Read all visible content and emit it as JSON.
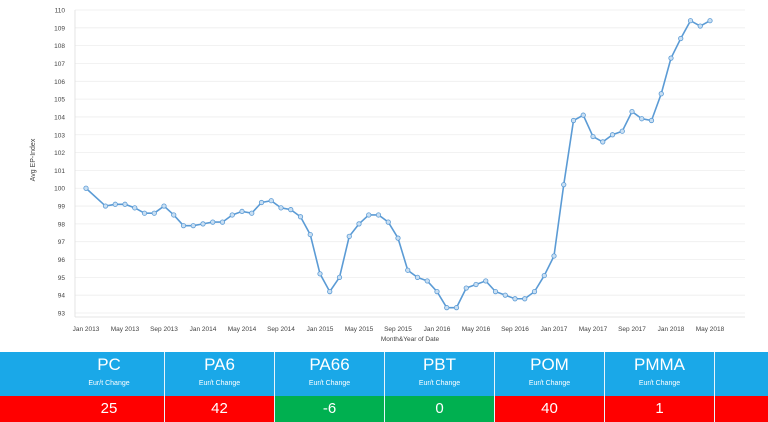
{
  "chart_data": {
    "type": "line",
    "title": "",
    "xlabel": "Month&Year of Date",
    "ylabel": "Avg EP-Index",
    "ylim": [
      93,
      110
    ],
    "yticks": [
      "93",
      "94",
      "95",
      "96",
      "97",
      "98",
      "99",
      "100",
      "101",
      "102",
      "103",
      "104",
      "105",
      "106",
      "107",
      "108",
      "109",
      "110"
    ],
    "xticks": [
      "Jan 2013",
      "May 2013",
      "Sep 2013",
      "Jan 2014",
      "May 2014",
      "Sep 2014",
      "Jan 2015",
      "May 2015",
      "Sep 2015",
      "Jan 2016",
      "May 2016",
      "Sep 2016",
      "Jan 2017",
      "May 2017",
      "Sep 2017",
      "Jan 2018",
      "May 2018"
    ],
    "grid": true,
    "series": [
      {
        "name": "Avg EP-Index",
        "color": "#5B9BD5",
        "points": [
          [
            0,
            100.0
          ],
          [
            2,
            99.0
          ],
          [
            3,
            99.1
          ],
          [
            4,
            99.1
          ],
          [
            5,
            98.9
          ],
          [
            6,
            98.6
          ],
          [
            7,
            98.6
          ],
          [
            8,
            99.0
          ],
          [
            9,
            98.5
          ],
          [
            10,
            97.9
          ],
          [
            11,
            97.9
          ],
          [
            12,
            98.0
          ],
          [
            13,
            98.1
          ],
          [
            14,
            98.1
          ],
          [
            15,
            98.5
          ],
          [
            16,
            98.7
          ],
          [
            17,
            98.6
          ],
          [
            18,
            99.2
          ],
          [
            19,
            99.3
          ],
          [
            20,
            98.9
          ],
          [
            21,
            98.8
          ],
          [
            22,
            98.4
          ],
          [
            23,
            97.4
          ],
          [
            24,
            95.2
          ],
          [
            25,
            94.2
          ],
          [
            26,
            95.0
          ],
          [
            27,
            97.3
          ],
          [
            28,
            98.0
          ],
          [
            29,
            98.5
          ],
          [
            30,
            98.5
          ],
          [
            31,
            98.1
          ],
          [
            32,
            97.2
          ],
          [
            33,
            95.4
          ],
          [
            34,
            95.0
          ],
          [
            35,
            94.8
          ],
          [
            36,
            94.2
          ],
          [
            37,
            93.3
          ],
          [
            38,
            93.3
          ],
          [
            39,
            94.4
          ],
          [
            40,
            94.6
          ],
          [
            41,
            94.8
          ],
          [
            42,
            94.2
          ],
          [
            43,
            94.0
          ],
          [
            44,
            93.8
          ],
          [
            45,
            93.8
          ],
          [
            46,
            94.2
          ],
          [
            47,
            95.1
          ],
          [
            48,
            96.2
          ],
          [
            49,
            100.2
          ],
          [
            50,
            103.8
          ],
          [
            51,
            104.1
          ],
          [
            52,
            102.9
          ],
          [
            53,
            102.6
          ],
          [
            54,
            103.0
          ],
          [
            55,
            103.2
          ],
          [
            56,
            104.3
          ],
          [
            57,
            103.9
          ],
          [
            58,
            103.8
          ],
          [
            59,
            105.3
          ],
          [
            60,
            107.3
          ],
          [
            61,
            108.4
          ],
          [
            62,
            109.4
          ],
          [
            63,
            109.1
          ],
          [
            64,
            109.4
          ]
        ]
      }
    ]
  },
  "summary": {
    "subtitle": "Eur/t Change",
    "colors": {
      "header": "#1AA8E8",
      "up": "#FF0000",
      "down": "#00B050"
    },
    "items": [
      {
        "name": "PC",
        "value": "25",
        "status": "up"
      },
      {
        "name": "PA6",
        "value": "42",
        "status": "up"
      },
      {
        "name": "PA66",
        "value": "-6",
        "status": "down"
      },
      {
        "name": "PBT",
        "value": "0",
        "status": "down"
      },
      {
        "name": "POM",
        "value": "40",
        "status": "up"
      },
      {
        "name": "PMMA",
        "value": "1",
        "status": "up"
      }
    ]
  }
}
